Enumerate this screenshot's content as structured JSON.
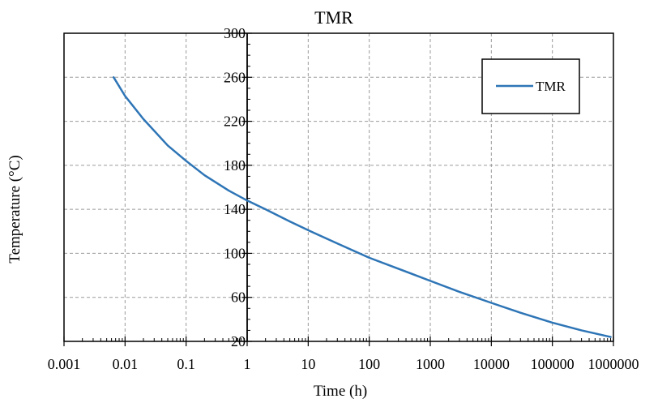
{
  "chart_data": {
    "type": "line",
    "title": "TMR",
    "xlabel": "Time (h)",
    "ylabel": "Temperature (°C)",
    "x_scale": "log",
    "xlim": [
      0.001,
      1000000
    ],
    "ylim": [
      20,
      300
    ],
    "x_ticks": [
      "0.001",
      "0.01",
      "0.1",
      "1",
      "10",
      "100",
      "1000",
      "10000",
      "100000",
      "1000000"
    ],
    "y_ticks": [
      "20",
      "60",
      "100",
      "140",
      "180",
      "220",
      "260",
      "300"
    ],
    "grid": true,
    "legend_position": "top-right",
    "series": [
      {
        "name": "TMR",
        "color": "#2e75b6",
        "x": [
          0.0065,
          0.01,
          0.02,
          0.05,
          0.1,
          0.2,
          0.5,
          1,
          2,
          5,
          10,
          30,
          100,
          300,
          1000,
          3000,
          10000,
          30000,
          100000,
          300000,
          900000
        ],
        "y": [
          260,
          243,
          222,
          198,
          184,
          171,
          157,
          148,
          140,
          129,
          121,
          109,
          96,
          86,
          75,
          65,
          55,
          46,
          37,
          30,
          24
        ]
      }
    ]
  }
}
